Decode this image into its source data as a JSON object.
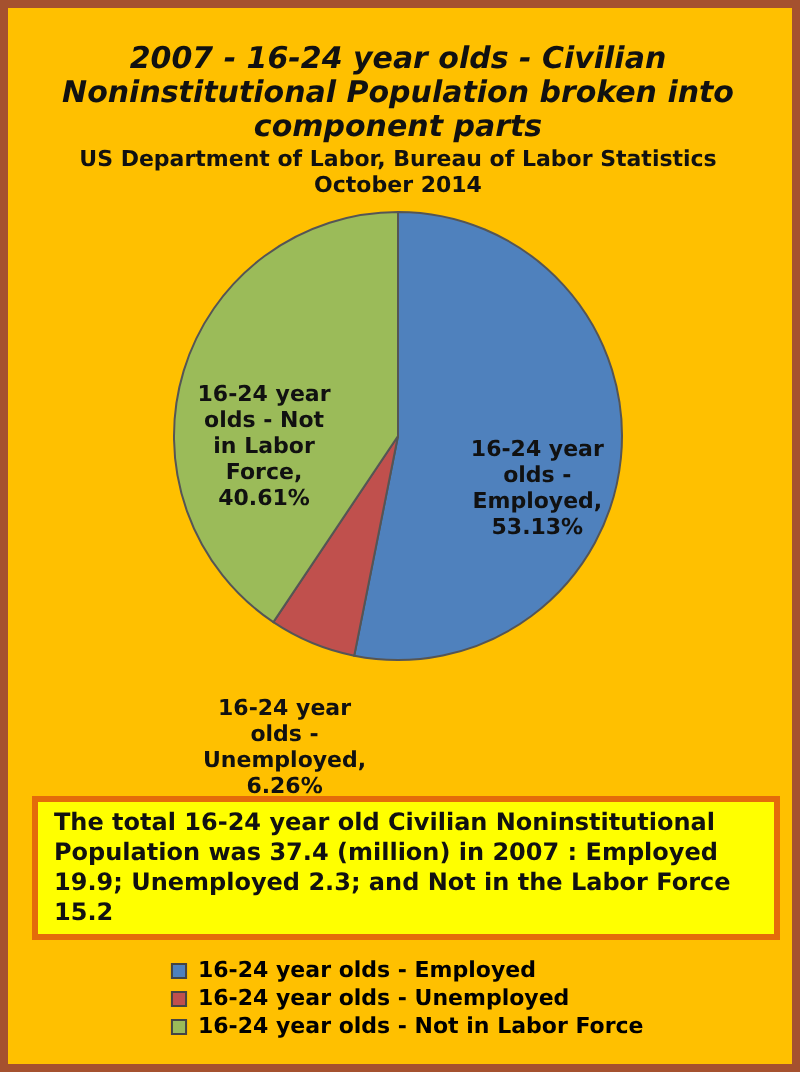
{
  "chart_data": {
    "type": "pie",
    "title": "2007 - 16-24 year olds - Civilian Noninstitutional Population broken into component parts",
    "subtitle": "US Department of Labor, Bureau of Labor Statistics October 2014",
    "categories": [
      "16-24 year olds - Employed",
      "16-24 year olds - Unemployed",
      "16-24 year olds - Not in Labor Force"
    ],
    "values": [
      53.13,
      6.26,
      40.61
    ],
    "value_labels": [
      ", 53.13%",
      ", 6.26%",
      ", 40.61%"
    ],
    "colors": [
      "#4f81bd",
      "#c0504d",
      "#9bbb59"
    ],
    "legend": "bottom",
    "annotations": [
      "The total 16-24 year old Civilian Noninstitutional Population was 37.4 (million) in 2007 : Employed 19.9; Unemployed 2.3; and Not in the Labor Force 15.2"
    ]
  }
}
